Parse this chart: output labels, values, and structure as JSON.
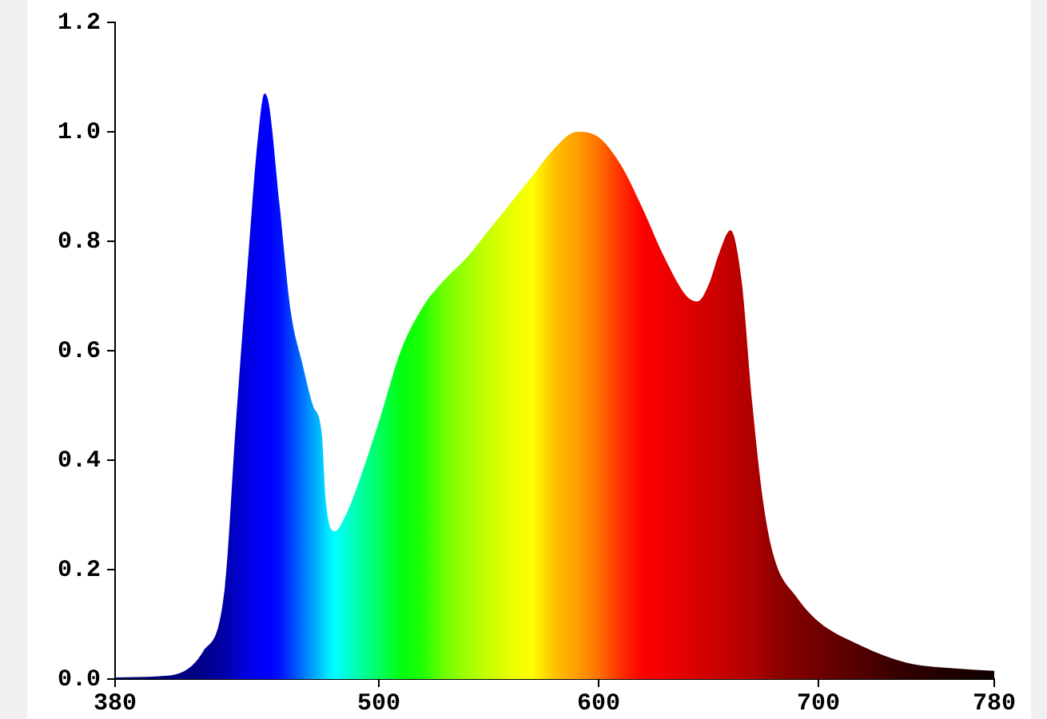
{
  "chart_data": {
    "type": "area",
    "x": [
      380,
      400,
      420,
      430,
      435,
      440,
      445,
      448,
      450,
      455,
      460,
      465,
      470,
      474,
      476,
      480,
      485,
      490,
      500,
      510,
      520,
      530,
      540,
      550,
      560,
      570,
      580,
      590,
      600,
      610,
      620,
      630,
      640,
      645,
      650,
      655,
      660,
      665,
      670,
      675,
      680,
      690,
      700,
      720,
      740,
      760,
      780
    ],
    "values": [
      0.003,
      0.005,
      0.05,
      0.17,
      0.47,
      0.74,
      0.99,
      1.07,
      1.05,
      0.86,
      0.67,
      0.58,
      0.5,
      0.45,
      0.32,
      0.27,
      0.3,
      0.35,
      0.47,
      0.6,
      0.68,
      0.73,
      0.77,
      0.82,
      0.87,
      0.92,
      0.97,
      1.0,
      0.99,
      0.94,
      0.86,
      0.77,
      0.7,
      0.69,
      0.72,
      0.78,
      0.82,
      0.73,
      0.5,
      0.32,
      0.22,
      0.15,
      0.105,
      0.06,
      0.03,
      0.02,
      0.015
    ],
    "colors": [
      "#000060",
      "#000070",
      "#00008b",
      "#0000a8",
      "#0000c8",
      "#0000e0",
      "#0000f0",
      "#0000ff",
      "#0000ff",
      "#0010ff",
      "#0040ff",
      "#0070ff",
      "#00a0ff",
      "#00c8ff",
      "#00e0ff",
      "#00ffff",
      "#00ffd8",
      "#00ffb0",
      "#00ff60",
      "#00ff10",
      "#20ff00",
      "#70ff00",
      "#a0ff00",
      "#c8ff00",
      "#e8ff00",
      "#ffff00",
      "#ffc000",
      "#ffa000",
      "#ff7000",
      "#ff3000",
      "#ff0000",
      "#f00000",
      "#e00000",
      "#d80000",
      "#d00000",
      "#c80000",
      "#c00000",
      "#b80000",
      "#b00000",
      "#a00000",
      "#900000",
      "#800000",
      "#700000",
      "#500000",
      "#300000",
      "#200000",
      "#100000"
    ],
    "marker": "none",
    "grid": false,
    "legend": false,
    "xlim": [
      380,
      780
    ],
    "xticks": [
      380,
      500,
      600,
      700,
      780
    ],
    "ylim": [
      0,
      1.2
    ],
    "yticks": [
      {
        "value": 0,
        "label": "0.0"
      },
      {
        "value": 0.2,
        "label": "0.2"
      },
      {
        "value": 0.4,
        "label": "0.4"
      },
      {
        "value": 0.6,
        "label": "0.6"
      },
      {
        "value": 0.8,
        "label": "0.8"
      },
      {
        "value": 1,
        "label": "1.0"
      },
      {
        "value": 1.2,
        "label": "1.2"
      }
    ]
  }
}
